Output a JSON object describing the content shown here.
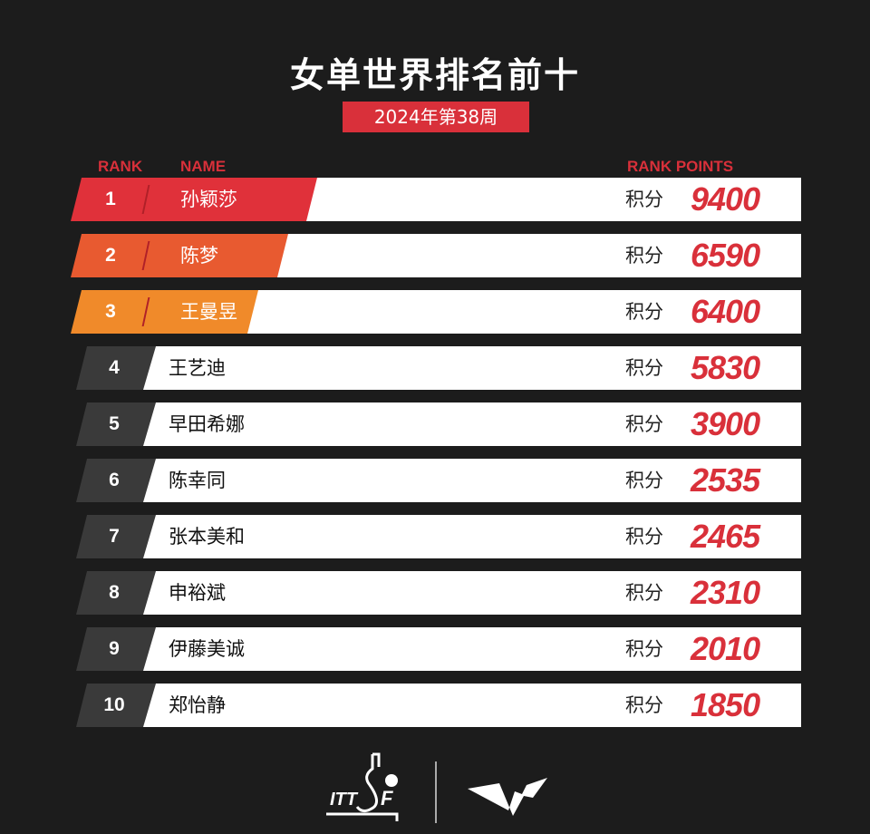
{
  "title": "女单世界排名前十",
  "subtitle": "2024年第38周",
  "headers": {
    "rank": "RANK",
    "name": "NAME",
    "points": "RANK POINTS"
  },
  "points_label": "积分",
  "colors": {
    "accent": "#d9303a",
    "rank1": "#e0313a",
    "rank2": "#e85a30",
    "rank3": "#f08a2a",
    "rank_other": "#3a3a3a"
  },
  "rows": [
    {
      "rank": "1",
      "name": "孙颖莎",
      "points": "9400"
    },
    {
      "rank": "2",
      "name": "陈梦",
      "points": "6590"
    },
    {
      "rank": "3",
      "name": "王曼昱",
      "points": "6400"
    },
    {
      "rank": "4",
      "name": "王艺迪",
      "points": "5830"
    },
    {
      "rank": "5",
      "name": "早田希娜",
      "points": "3900"
    },
    {
      "rank": "6",
      "name": "陈幸同",
      "points": "2535"
    },
    {
      "rank": "7",
      "name": "张本美和",
      "points": "2465"
    },
    {
      "rank": "8",
      "name": "申裕斌",
      "points": "2310"
    },
    {
      "rank": "9",
      "name": "伊藤美诚",
      "points": "2010"
    },
    {
      "rank": "10",
      "name": "郑怡静",
      "points": "1850"
    }
  ],
  "logos": {
    "left": "ITTF",
    "right": "WTT"
  }
}
